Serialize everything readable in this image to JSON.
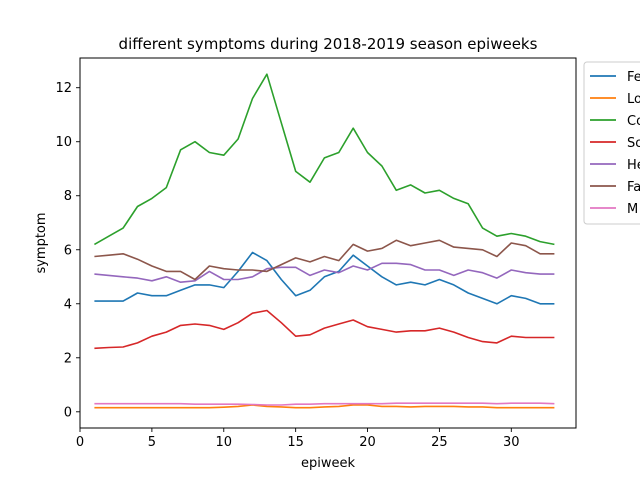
{
  "chart_data": {
    "type": "line",
    "title": "different symptoms during 2018-2019 season epiweeks",
    "xlabel": "epiweek",
    "ylabel": "symptom",
    "xlim": [
      0,
      34.5
    ],
    "ylim": [
      -0.6,
      13.1
    ],
    "xticks": [
      0,
      5,
      10,
      15,
      20,
      25,
      30
    ],
    "yticks": [
      0,
      2,
      4,
      6,
      8,
      10,
      12
    ],
    "grid": false,
    "legend_position": "outside-right-top",
    "x": [
      1,
      2,
      3,
      4,
      5,
      6,
      7,
      8,
      9,
      10,
      11,
      12,
      13,
      14,
      15,
      16,
      17,
      18,
      19,
      20,
      21,
      22,
      23,
      24,
      25,
      26,
      27,
      28,
      29,
      30,
      31,
      32,
      33
    ],
    "series": [
      {
        "name": "Fe",
        "color": "#1f77b4",
        "values": [
          4.1,
          4.1,
          4.1,
          4.4,
          4.3,
          4.3,
          4.5,
          4.7,
          4.7,
          4.6,
          5.2,
          5.9,
          5.6,
          4.9,
          4.3,
          4.5,
          5.0,
          5.2,
          5.8,
          5.4,
          5.0,
          4.7,
          4.8,
          4.7,
          4.9,
          4.7,
          4.4,
          4.2,
          4.0,
          4.3,
          4.2,
          4.0,
          4.0
        ]
      },
      {
        "name": "Lo",
        "color": "#ff7f0e",
        "values": [
          0.15,
          0.15,
          0.15,
          0.15,
          0.15,
          0.15,
          0.15,
          0.15,
          0.15,
          0.17,
          0.2,
          0.25,
          0.2,
          0.18,
          0.15,
          0.15,
          0.18,
          0.2,
          0.25,
          0.25,
          0.2,
          0.2,
          0.18,
          0.2,
          0.2,
          0.2,
          0.18,
          0.18,
          0.15,
          0.15,
          0.15,
          0.15,
          0.15
        ]
      },
      {
        "name": "Co",
        "color": "#2ca02c",
        "values": [
          6.2,
          6.5,
          6.8,
          7.6,
          7.9,
          8.3,
          9.7,
          10.0,
          9.6,
          9.5,
          10.1,
          11.6,
          12.5,
          10.7,
          8.9,
          8.5,
          9.4,
          9.6,
          10.5,
          9.6,
          9.1,
          8.2,
          8.4,
          8.1,
          8.2,
          7.9,
          7.7,
          6.8,
          6.5,
          6.6,
          6.5,
          6.3,
          6.2
        ]
      },
      {
        "name": "So",
        "color": "#d62728",
        "values": [
          2.35,
          2.38,
          2.4,
          2.55,
          2.8,
          2.95,
          3.2,
          3.25,
          3.2,
          3.05,
          3.3,
          3.65,
          3.75,
          3.3,
          2.8,
          2.85,
          3.1,
          3.25,
          3.4,
          3.15,
          3.05,
          2.95,
          3.0,
          3.0,
          3.1,
          2.95,
          2.75,
          2.6,
          2.55,
          2.8,
          2.75,
          2.75,
          2.75
        ]
      },
      {
        "name": "He",
        "color": "#9467bd",
        "values": [
          5.1,
          5.05,
          5.0,
          4.95,
          4.85,
          5.0,
          4.8,
          4.85,
          5.2,
          4.9,
          4.9,
          5.0,
          5.3,
          5.35,
          5.35,
          5.05,
          5.25,
          5.15,
          5.4,
          5.25,
          5.5,
          5.5,
          5.45,
          5.25,
          5.25,
          5.05,
          5.25,
          5.15,
          4.95,
          5.25,
          5.15,
          5.1,
          5.1
        ]
      },
      {
        "name": "Fa",
        "color": "#8c564b",
        "values": [
          5.75,
          5.8,
          5.85,
          5.65,
          5.4,
          5.2,
          5.2,
          4.9,
          5.4,
          5.3,
          5.25,
          5.25,
          5.2,
          5.45,
          5.7,
          5.55,
          5.75,
          5.6,
          6.2,
          5.95,
          6.05,
          6.35,
          6.15,
          6.25,
          6.35,
          6.1,
          6.05,
          6.0,
          5.75,
          6.25,
          6.15,
          5.85,
          5.85
        ]
      },
      {
        "name": "M",
        "color": "#e377c2",
        "values": [
          0.3,
          0.3,
          0.3,
          0.3,
          0.3,
          0.3,
          0.3,
          0.28,
          0.28,
          0.28,
          0.28,
          0.27,
          0.25,
          0.25,
          0.28,
          0.28,
          0.3,
          0.3,
          0.3,
          0.3,
          0.3,
          0.32,
          0.32,
          0.32,
          0.32,
          0.32,
          0.32,
          0.32,
          0.3,
          0.32,
          0.32,
          0.32,
          0.3
        ]
      }
    ]
  }
}
